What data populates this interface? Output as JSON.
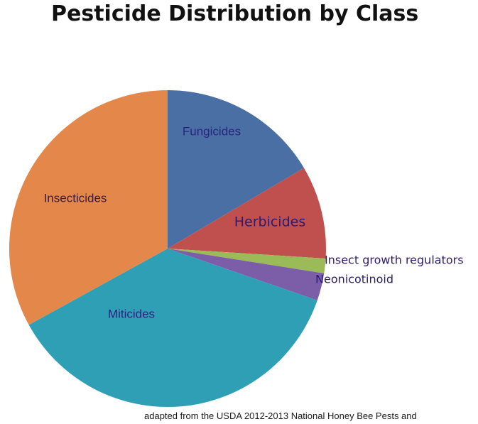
{
  "chart_data": {
    "type": "pie",
    "title": "Pesticide Distribution by Class",
    "source": "adapted from the USDA 2012-2013 National Honey Bee Pests and",
    "slices": [
      {
        "label": "Fungicides",
        "value": 16.5,
        "color": "#4a6fa5",
        "label_color": "#2a2580"
      },
      {
        "label": "Herbicides",
        "value": 9.5,
        "color": "#c0504d",
        "label_color": "#2a1d70"
      },
      {
        "label": "Insect growth regulators",
        "value": 1.5,
        "color": "#9bbb59",
        "label_color": "#2a1d70"
      },
      {
        "label": "Neonicotinoid",
        "value": 2.8,
        "color": "#7b5ea7",
        "label_color": "#2a1d70"
      },
      {
        "label": "Miticides",
        "value": 36.7,
        "color": "#2f9fb5",
        "label_color": "#2a2580"
      },
      {
        "label": "Insecticides",
        "value": 33.0,
        "color": "#e3884a",
        "label_color": "#3a1d40"
      }
    ],
    "start_angle": "12 o'clock",
    "direction": "clockwise",
    "legend": "none"
  }
}
